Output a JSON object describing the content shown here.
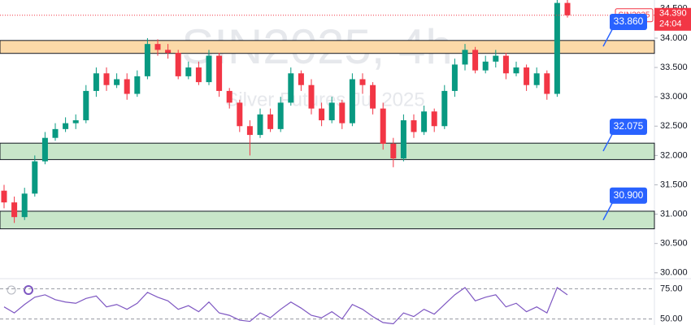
{
  "chart_data": {
    "type": "candlestick",
    "title": "SIN2025, 4h",
    "subtitle": "Silver Futures Jul 2025",
    "symbol": "SIN2025",
    "last_price": {
      "value": 34.39,
      "label": "34.390"
    },
    "countdown": "24:04",
    "up_color": "#089981",
    "down_color": "#f23645",
    "open": [
      31.4,
      31.2,
      30.95,
      31.35,
      31.9,
      32.3,
      32.45,
      32.55,
      32.6,
      33.1,
      33.4,
      33.2,
      33.3,
      33.05,
      33.35,
      33.9,
      33.8,
      33.75,
      33.35,
      33.5,
      33.25,
      33.7,
      33.1,
      32.9,
      32.5,
      32.35,
      32.7,
      32.45,
      32.9,
      33.4,
      33.2,
      32.8,
      32.6,
      32.9,
      32.55,
      33.3,
      33.2,
      32.8,
      32.2,
      31.95,
      32.6,
      32.4,
      32.75,
      32.5,
      33.1,
      33.55,
      33.8,
      33.45,
      33.6,
      33.7,
      33.4,
      33.5,
      33.2,
      33.4,
      33.05,
      34.6
    ],
    "high": [
      31.5,
      31.3,
      31.45,
      32.0,
      32.4,
      32.55,
      32.65,
      32.7,
      33.2,
      33.5,
      33.5,
      33.4,
      33.4,
      33.45,
      34.0,
      33.98,
      33.9,
      33.8,
      33.6,
      33.6,
      33.8,
      33.75,
      33.15,
      32.95,
      32.6,
      32.8,
      32.8,
      33.0,
      33.5,
      33.45,
      33.3,
      32.9,
      33.0,
      32.95,
      33.4,
      33.4,
      33.25,
      32.9,
      32.3,
      32.7,
      32.7,
      32.85,
      32.8,
      33.2,
      33.65,
      33.9,
      33.85,
      33.7,
      33.8,
      33.75,
      33.6,
      33.55,
      33.5,
      33.45,
      34.7,
      34.65
    ],
    "low": [
      31.1,
      30.85,
      30.9,
      31.3,
      31.85,
      32.25,
      32.4,
      32.45,
      32.55,
      33.0,
      33.1,
      33.15,
      32.95,
      33.0,
      33.3,
      33.7,
      33.65,
      33.3,
      33.3,
      33.2,
      33.2,
      33.0,
      32.8,
      32.4,
      32.0,
      32.3,
      32.4,
      32.4,
      32.85,
      33.1,
      32.7,
      32.5,
      32.55,
      32.45,
      32.5,
      33.05,
      32.7,
      32.1,
      31.8,
      31.9,
      32.3,
      32.35,
      32.4,
      32.45,
      33.0,
      33.45,
      33.4,
      33.4,
      33.5,
      33.3,
      33.35,
      33.1,
      33.15,
      32.95,
      33.0,
      34.35
    ],
    "close": [
      31.2,
      30.95,
      31.35,
      31.9,
      32.3,
      32.45,
      32.55,
      32.6,
      33.1,
      33.4,
      33.2,
      33.3,
      33.05,
      33.35,
      33.9,
      33.8,
      33.75,
      33.35,
      33.5,
      33.25,
      33.7,
      33.1,
      32.9,
      32.5,
      32.35,
      32.7,
      32.45,
      32.9,
      33.4,
      33.2,
      32.8,
      32.6,
      32.9,
      32.55,
      33.3,
      33.2,
      32.8,
      32.2,
      31.95,
      32.6,
      32.4,
      32.75,
      32.5,
      33.1,
      33.55,
      33.8,
      33.45,
      33.6,
      33.7,
      33.4,
      33.5,
      33.2,
      33.4,
      33.05,
      34.6,
      34.39
    ],
    "ylim": [
      29.9,
      34.65
    ],
    "yticks": [
      {
        "value": 34.5,
        "label": "34.500"
      },
      {
        "value": 34,
        "label": "34.000"
      },
      {
        "value": 33.5,
        "label": "33.500"
      },
      {
        "value": 33,
        "label": "33.000"
      },
      {
        "value": 32.5,
        "label": "32.500"
      },
      {
        "value": 32,
        "label": "32.000"
      },
      {
        "value": 31.5,
        "label": "31.500"
      },
      {
        "value": 31,
        "label": "31.000"
      },
      {
        "value": 30.5,
        "label": "30.500"
      },
      {
        "value": 30,
        "label": "30.000"
      }
    ],
    "zones": [
      {
        "low": 33.74,
        "high": 33.96,
        "color": "#fcd9a8",
        "label": {
          "value": 33.86,
          "label": "33.860"
        }
      },
      {
        "low": 31.93,
        "high": 32.21,
        "color": "#c8e6c9",
        "label": {
          "value": 32.075,
          "label": "32.075"
        }
      },
      {
        "low": 30.75,
        "high": 31.05,
        "color": "#c8e6c9",
        "label": {
          "value": 30.9,
          "label": "30.900"
        }
      }
    ],
    "rsi": {
      "color": "#7e57c2",
      "values": [
        60,
        55,
        62,
        68,
        70,
        66,
        64,
        63,
        67,
        69,
        60,
        62,
        58,
        63,
        72,
        68,
        65,
        58,
        61,
        56,
        64,
        55,
        53,
        49,
        48,
        55,
        51,
        58,
        64,
        59,
        53,
        51,
        56,
        50,
        62,
        58,
        52,
        47,
        46,
        55,
        52,
        58,
        54,
        62,
        70,
        76,
        65,
        68,
        70,
        60,
        63,
        56,
        60,
        55,
        76,
        70
      ],
      "ylim": [
        45,
        82
      ],
      "yticks": [
        {
          "value": 75,
          "label": "75.00"
        },
        {
          "value": 50,
          "label": "50.00"
        }
      ]
    }
  }
}
